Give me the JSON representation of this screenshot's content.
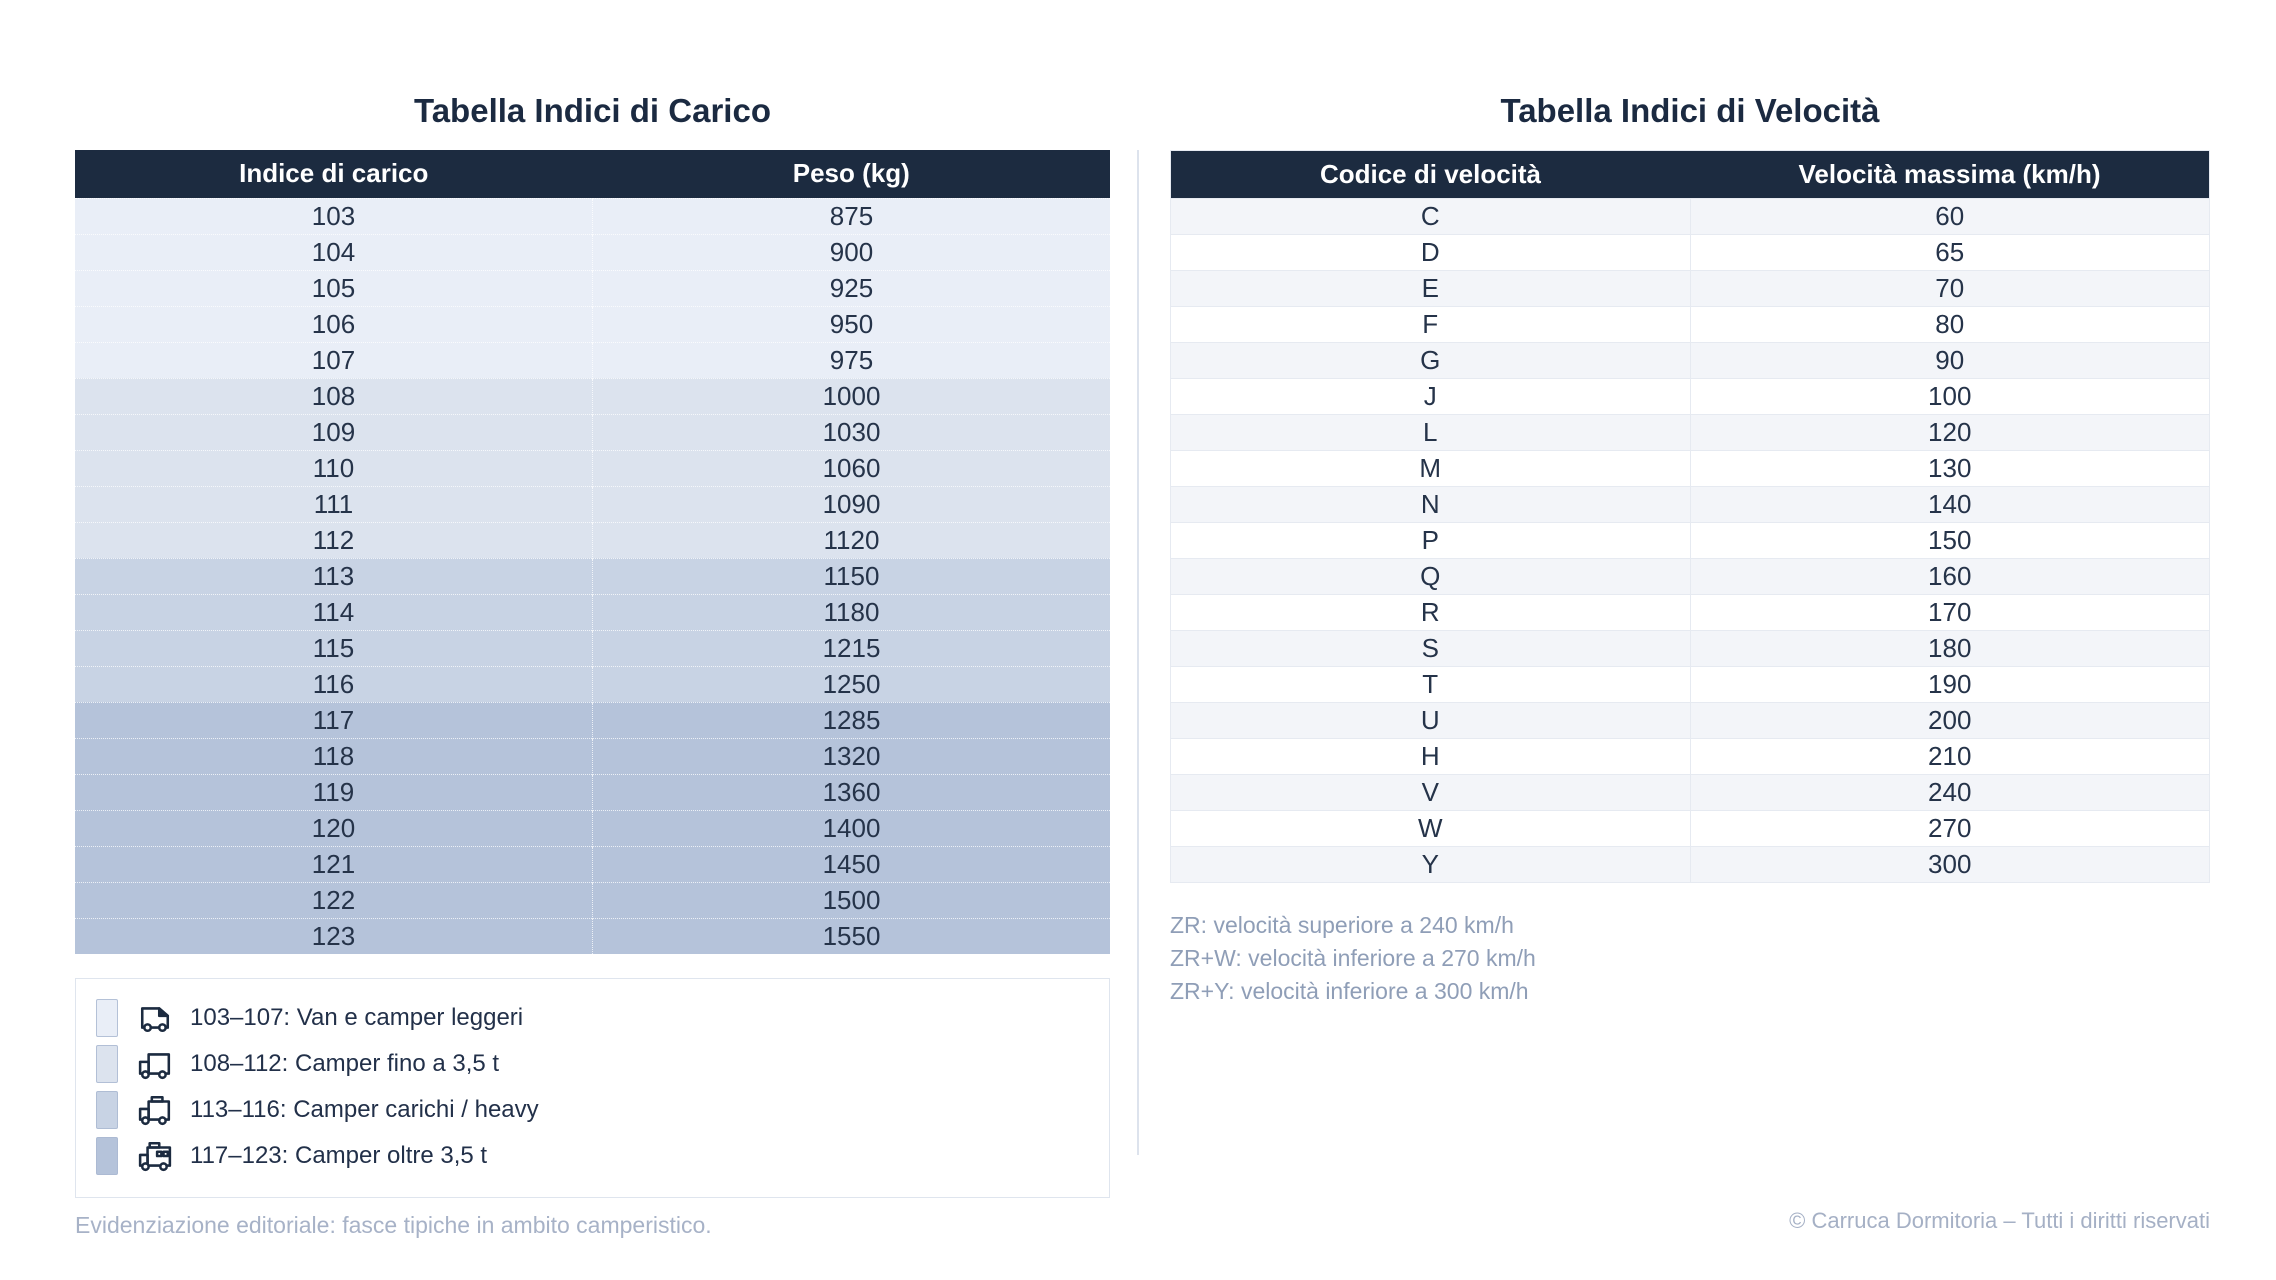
{
  "colors": {
    "header_bg": "#1c2b40",
    "title_text": "#1b2a41",
    "cell_text": "#253349",
    "band_103_107": "#e9eef7",
    "band_108_112": "#dce3ee",
    "band_113_116": "#c8d3e4",
    "band_117_123": "#b5c3da",
    "stripe_odd": "#f3f5f9",
    "stripe_even": "#ffffff",
    "muted_text": "#a7b2c7",
    "note_text": "#8f9eb7"
  },
  "load_table": {
    "title": "Tabella Indici di Carico",
    "columns": [
      "Indice di carico",
      "Peso (kg)"
    ],
    "rows": [
      {
        "index": "103",
        "weight": "875",
        "band": 1
      },
      {
        "index": "104",
        "weight": "900",
        "band": 1
      },
      {
        "index": "105",
        "weight": "925",
        "band": 1
      },
      {
        "index": "106",
        "weight": "950",
        "band": 1
      },
      {
        "index": "107",
        "weight": "975",
        "band": 1
      },
      {
        "index": "108",
        "weight": "1000",
        "band": 2
      },
      {
        "index": "109",
        "weight": "1030",
        "band": 2
      },
      {
        "index": "110",
        "weight": "1060",
        "band": 2
      },
      {
        "index": "111",
        "weight": "1090",
        "band": 2
      },
      {
        "index": "112",
        "weight": "1120",
        "band": 2
      },
      {
        "index": "113",
        "weight": "1150",
        "band": 3
      },
      {
        "index": "114",
        "weight": "1180",
        "band": 3
      },
      {
        "index": "115",
        "weight": "1215",
        "band": 3
      },
      {
        "index": "116",
        "weight": "1250",
        "band": 3
      },
      {
        "index": "117",
        "weight": "1285",
        "band": 4
      },
      {
        "index": "118",
        "weight": "1320",
        "band": 4
      },
      {
        "index": "119",
        "weight": "1360",
        "band": 4
      },
      {
        "index": "120",
        "weight": "1400",
        "band": 4
      },
      {
        "index": "121",
        "weight": "1450",
        "band": 4
      },
      {
        "index": "122",
        "weight": "1500",
        "band": 4
      },
      {
        "index": "123",
        "weight": "1550",
        "band": 4
      }
    ]
  },
  "legend": {
    "items": [
      {
        "label": "103–107: Van e camper leggeri",
        "swatch": "#e9eef7",
        "icon": "van-icon"
      },
      {
        "label": "108–112: Camper fino a 3,5 t",
        "swatch": "#dce3ee",
        "icon": "camper-icon"
      },
      {
        "label": "113–116: Camper carichi / heavy",
        "swatch": "#c8d3e4",
        "icon": "camper-roofbox-icon"
      },
      {
        "label": "117–123: Camper oltre 3,5 t",
        "swatch": "#b5c3da",
        "icon": "camper-large-icon"
      }
    ],
    "footnote": "Evidenziazione editoriale: fasce tipiche in ambito camperistico."
  },
  "speed_table": {
    "title": "Tabella Indici di Velocità",
    "columns": [
      "Codice di velocità",
      "Velocità massima (km/h)"
    ],
    "rows": [
      {
        "code": "C",
        "speed": "60"
      },
      {
        "code": "D",
        "speed": "65"
      },
      {
        "code": "E",
        "speed": "70"
      },
      {
        "code": "F",
        "speed": "80"
      },
      {
        "code": "G",
        "speed": "90"
      },
      {
        "code": "J",
        "speed": "100"
      },
      {
        "code": "L",
        "speed": "120"
      },
      {
        "code": "M",
        "speed": "130"
      },
      {
        "code": "N",
        "speed": "140"
      },
      {
        "code": "P",
        "speed": "150"
      },
      {
        "code": "Q",
        "speed": "160"
      },
      {
        "code": "R",
        "speed": "170"
      },
      {
        "code": "S",
        "speed": "180"
      },
      {
        "code": "T",
        "speed": "190"
      },
      {
        "code": "U",
        "speed": "200"
      },
      {
        "code": "H",
        "speed": "210"
      },
      {
        "code": "V",
        "speed": "240"
      },
      {
        "code": "W",
        "speed": "270"
      },
      {
        "code": "Y",
        "speed": "300"
      }
    ]
  },
  "speed_notes": [
    "ZR: velocità superiore a 240 km/h",
    "ZR+W: velocità inferiore a 270 km/h",
    "ZR+Y: velocità inferiore a 300 km/h"
  ],
  "copyright": "© Carruca Dormitoria – Tutti i diritti riservati"
}
